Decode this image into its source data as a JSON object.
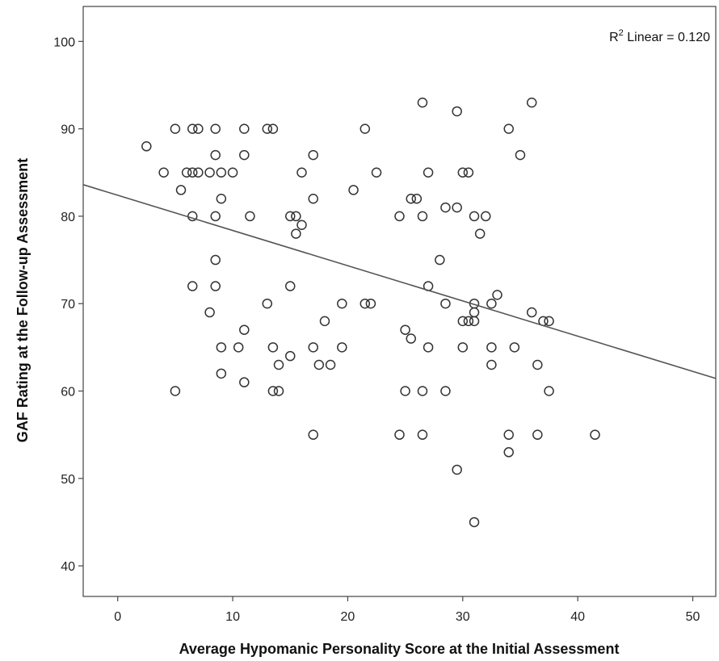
{
  "chart_data": {
    "type": "scatter",
    "title": "",
    "xlabel": "Average Hypomanic Personality Score at the Initial Assessment",
    "ylabel": "GAF Rating at the Follow-up Assessment",
    "xlim": [
      -3,
      52
    ],
    "ylim": [
      36.5,
      104
    ],
    "xticks": [
      "0",
      "10",
      "20",
      "30",
      "40",
      "50"
    ],
    "yticks": [
      "40",
      "50",
      "60",
      "70",
      "80",
      "90",
      "100"
    ],
    "grid": false,
    "annotation": {
      "r2_prefix": "R",
      "r2_sup": "2",
      "r2_text": " Linear = 0.120"
    },
    "fit_line": {
      "intercept": 82.4,
      "slope": -0.403
    },
    "points": [
      [
        2.5,
        88
      ],
      [
        4,
        85
      ],
      [
        5,
        90
      ],
      [
        5,
        60
      ],
      [
        5.5,
        83
      ],
      [
        6,
        85
      ],
      [
        6.5,
        90
      ],
      [
        6.5,
        85
      ],
      [
        6.5,
        80
      ],
      [
        6.5,
        72
      ],
      [
        7,
        90
      ],
      [
        7,
        85
      ],
      [
        8,
        85
      ],
      [
        8,
        69
      ],
      [
        8.5,
        90
      ],
      [
        8.5,
        87
      ],
      [
        8.5,
        80
      ],
      [
        8.5,
        75
      ],
      [
        8.5,
        72
      ],
      [
        9,
        85
      ],
      [
        9,
        82
      ],
      [
        9,
        65
      ],
      [
        9,
        62
      ],
      [
        10,
        85
      ],
      [
        10.5,
        65
      ],
      [
        11,
        90
      ],
      [
        11,
        87
      ],
      [
        11,
        67
      ],
      [
        11,
        61
      ],
      [
        11.5,
        80
      ],
      [
        13,
        90
      ],
      [
        13,
        70
      ],
      [
        13.5,
        90
      ],
      [
        13.5,
        65
      ],
      [
        13.5,
        60
      ],
      [
        14,
        63
      ],
      [
        14,
        60
      ],
      [
        15,
        80
      ],
      [
        15,
        72
      ],
      [
        15,
        64
      ],
      [
        15.5,
        80
      ],
      [
        15.5,
        78
      ],
      [
        16,
        85
      ],
      [
        16,
        79
      ],
      [
        17,
        87
      ],
      [
        17,
        82
      ],
      [
        17,
        65
      ],
      [
        17,
        55
      ],
      [
        17.5,
        63
      ],
      [
        18,
        68
      ],
      [
        18.5,
        63
      ],
      [
        19.5,
        70
      ],
      [
        19.5,
        65
      ],
      [
        20.5,
        83
      ],
      [
        21.5,
        90
      ],
      [
        21.5,
        70
      ],
      [
        22,
        70
      ],
      [
        22.5,
        85
      ],
      [
        24.5,
        80
      ],
      [
        24.5,
        55
      ],
      [
        25,
        67
      ],
      [
        25,
        60
      ],
      [
        25.5,
        82
      ],
      [
        25.5,
        66
      ],
      [
        26,
        82
      ],
      [
        26.5,
        93
      ],
      [
        26.5,
        80
      ],
      [
        26.5,
        60
      ],
      [
        26.5,
        55
      ],
      [
        27,
        85
      ],
      [
        27,
        72
      ],
      [
        27,
        65
      ],
      [
        28,
        75
      ],
      [
        28.5,
        81
      ],
      [
        28.5,
        70
      ],
      [
        28.5,
        60
      ],
      [
        29.5,
        92
      ],
      [
        29.5,
        81
      ],
      [
        29.5,
        51
      ],
      [
        30,
        85
      ],
      [
        30,
        68
      ],
      [
        30,
        65
      ],
      [
        30.5,
        85
      ],
      [
        30.5,
        68
      ],
      [
        31,
        80
      ],
      [
        31,
        70
      ],
      [
        31,
        69
      ],
      [
        31,
        68
      ],
      [
        31,
        45
      ],
      [
        31.5,
        78
      ],
      [
        32,
        80
      ],
      [
        32.5,
        70
      ],
      [
        32.5,
        65
      ],
      [
        32.5,
        63
      ],
      [
        33,
        71
      ],
      [
        34,
        90
      ],
      [
        34,
        55
      ],
      [
        34,
        53
      ],
      [
        34.5,
        65
      ],
      [
        35,
        87
      ],
      [
        36,
        93
      ],
      [
        36,
        69
      ],
      [
        36.5,
        63
      ],
      [
        36.5,
        55
      ],
      [
        37,
        68
      ],
      [
        37.5,
        68
      ],
      [
        37.5,
        60
      ],
      [
        41.5,
        55
      ]
    ]
  }
}
